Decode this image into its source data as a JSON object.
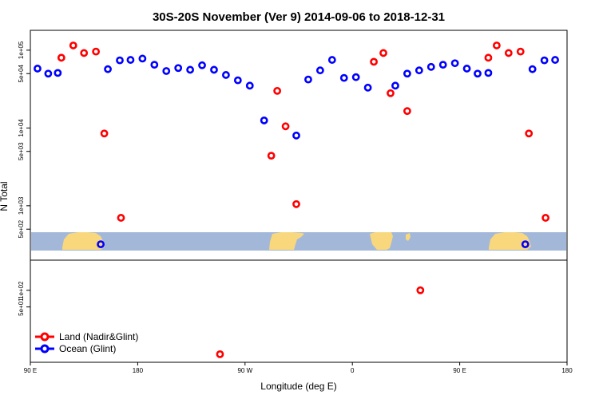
{
  "chart_data": {
    "type": "scatter",
    "title": "30S-20S November (Ver 9)   2014-09-06 to 2018-12-31",
    "xlabel": "Longitude (deg E)",
    "ylabel": "N Total",
    "x_ticks": [
      {
        "value": 90,
        "label": "90 E"
      },
      {
        "value": 180,
        "label": "180"
      },
      {
        "value": 270,
        "label": "90 W"
      },
      {
        "value": 360,
        "label": "0"
      },
      {
        "value": 450,
        "label": "90 E"
      },
      {
        "value": 540,
        "label": "180"
      }
    ],
    "xlim": [
      90,
      540
    ],
    "upper_panel": {
      "yscale": "log",
      "ylim": [
        200,
        180000
      ],
      "y_ticks": [
        {
          "value": 500,
          "label": "5e+02"
        },
        {
          "value": 1000,
          "label": "1e+03"
        },
        {
          "value": 5000,
          "label": "5e+03"
        },
        {
          "value": 10000,
          "label": "1e+04"
        },
        {
          "value": 50000,
          "label": "5e+04"
        },
        {
          "value": 100000,
          "label": "1e+05"
        }
      ]
    },
    "lower_panel": {
      "yscale": "log",
      "ylim": [
        5,
        350
      ],
      "y_ticks": [
        {
          "value": 50,
          "label": "5e+01"
        },
        {
          "value": 100,
          "label": "1e+02"
        }
      ]
    },
    "series": [
      {
        "name": "Land (Nadir&Glint)",
        "color": "#ff0000",
        "upper": [
          {
            "x": 116,
            "y": 80000
          },
          {
            "x": 126,
            "y": 115000
          },
          {
            "x": 135,
            "y": 92000
          },
          {
            "x": 145,
            "y": 96000
          },
          {
            "x": 152,
            "y": 8500
          },
          {
            "x": 166,
            "y": 700
          },
          {
            "x": 292,
            "y": 4400
          },
          {
            "x": 297,
            "y": 30000
          },
          {
            "x": 304,
            "y": 10500
          },
          {
            "x": 313,
            "y": 1050
          },
          {
            "x": 378,
            "y": 71000
          },
          {
            "x": 386,
            "y": 92000
          },
          {
            "x": 392,
            "y": 28000
          },
          {
            "x": 406,
            "y": 16500
          },
          {
            "x": 474,
            "y": 80000
          },
          {
            "x": 481,
            "y": 115000
          },
          {
            "x": 491,
            "y": 92000
          },
          {
            "x": 501,
            "y": 96000
          },
          {
            "x": 508,
            "y": 8500
          },
          {
            "x": 522,
            "y": 700
          }
        ],
        "lower": [
          {
            "x": 249,
            "y": 7
          },
          {
            "x": 417,
            "y": 100
          }
        ]
      },
      {
        "name": "Ocean (Glint)",
        "color": "#0000ff",
        "upper": [
          {
            "x": 96,
            "y": 58000
          },
          {
            "x": 105,
            "y": 50000
          },
          {
            "x": 113,
            "y": 51000
          },
          {
            "x": 149,
            "y": 320
          },
          {
            "x": 155,
            "y": 57000
          },
          {
            "x": 165,
            "y": 74000
          },
          {
            "x": 174,
            "y": 75000
          },
          {
            "x": 184,
            "y": 78000
          },
          {
            "x": 194,
            "y": 65000
          },
          {
            "x": 204,
            "y": 54000
          },
          {
            "x": 214,
            "y": 59000
          },
          {
            "x": 224,
            "y": 56000
          },
          {
            "x": 234,
            "y": 64000
          },
          {
            "x": 244,
            "y": 56000
          },
          {
            "x": 254,
            "y": 48000
          },
          {
            "x": 264,
            "y": 41000
          },
          {
            "x": 274,
            "y": 35000
          },
          {
            "x": 286,
            "y": 12500
          },
          {
            "x": 313,
            "y": 8000
          },
          {
            "x": 323,
            "y": 42000
          },
          {
            "x": 333,
            "y": 55000
          },
          {
            "x": 343,
            "y": 75000
          },
          {
            "x": 353,
            "y": 44000
          },
          {
            "x": 363,
            "y": 45000
          },
          {
            "x": 373,
            "y": 33000
          },
          {
            "x": 396,
            "y": 35000
          },
          {
            "x": 406,
            "y": 50000
          },
          {
            "x": 416,
            "y": 55000
          },
          {
            "x": 426,
            "y": 61000
          },
          {
            "x": 436,
            "y": 65000
          },
          {
            "x": 446,
            "y": 68000
          },
          {
            "x": 456,
            "y": 58000
          },
          {
            "x": 465,
            "y": 50000
          },
          {
            "x": 474,
            "y": 51000
          },
          {
            "x": 505,
            "y": 320
          },
          {
            "x": 511,
            "y": 57000
          },
          {
            "x": 521,
            "y": 74000
          },
          {
            "x": 530,
            "y": 75000
          }
        ],
        "lower": []
      }
    ],
    "legend": {
      "position": "bottom-left"
    }
  },
  "colors": {
    "ocean_band": "#a3b8d9",
    "land_band": "#f8d77d"
  }
}
